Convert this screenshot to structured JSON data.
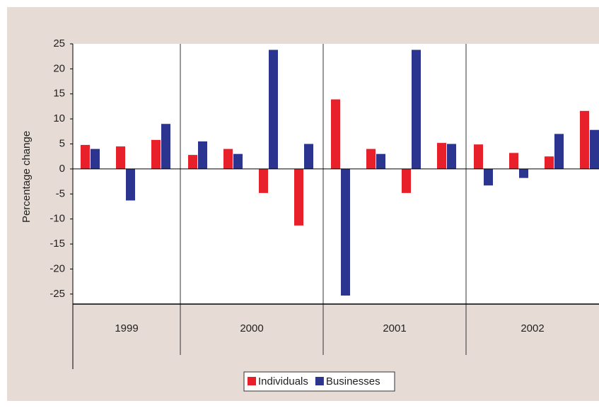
{
  "chart_data": {
    "type": "bar",
    "y_label": "Percentage change",
    "categories": [
      "1999",
      "1999",
      "1999",
      "2000",
      "2000",
      "2000",
      "2000",
      "2001",
      "2001",
      "2001",
      "2001",
      "2002",
      "2002",
      "2002",
      "2002"
    ],
    "series": [
      {
        "name": "Individuals",
        "color": "#e8202a",
        "values": [
          4.8,
          4.5,
          5.8,
          2.8,
          4,
          -4.8,
          -11.3,
          13.9,
          4,
          -4.8,
          5.2,
          4.9,
          3.2,
          2.5,
          11.6
        ]
      },
      {
        "name": "Businesses",
        "color": "#2b3590",
        "values": [
          4,
          -6.3,
          9,
          5.5,
          3,
          23.8,
          5,
          -25.3,
          3,
          23.8,
          5,
          -3.3,
          -1.8,
          7,
          7.8
        ]
      }
    ],
    "ylim": [
      -27,
      25
    ],
    "yticks": [
      -25,
      -20,
      -15,
      -10,
      -5,
      0,
      5,
      10,
      15,
      20,
      25
    ],
    "legend": "bottom"
  }
}
